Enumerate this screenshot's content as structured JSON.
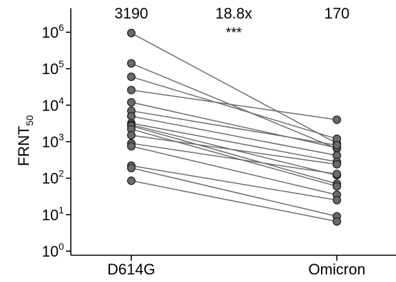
{
  "chart_data": {
    "type": "line",
    "scale": "log10",
    "ylabel": {
      "main": "FRNT",
      "subscript": "50"
    },
    "ylim": [
      1,
      1000000
    ],
    "yticks": [
      {
        "base": "10",
        "exp": "0",
        "value": 1
      },
      {
        "base": "10",
        "exp": "1",
        "value": 10
      },
      {
        "base": "10",
        "exp": "2",
        "value": 100
      },
      {
        "base": "10",
        "exp": "3",
        "value": 1000
      },
      {
        "base": "10",
        "exp": "4",
        "value": 10000
      },
      {
        "base": "10",
        "exp": "5",
        "value": 100000
      },
      {
        "base": "10",
        "exp": "6",
        "value": 1000000
      }
    ],
    "categories": [
      "D614G",
      "Omicron"
    ],
    "annotations": {
      "left": "3190",
      "middle": "18.8x",
      "right": "170",
      "significance": "***"
    },
    "pairs": [
      [
        950000,
        900
      ],
      [
        140000,
        650
      ],
      [
        60000,
        1200
      ],
      [
        26000,
        4000
      ],
      [
        12000,
        680
      ],
      [
        7000,
        800
      ],
      [
        5000,
        420
      ],
      [
        3200,
        280
      ],
      [
        2900,
        120
      ],
      [
        2700,
        70
      ],
      [
        2200,
        60
      ],
      [
        1500,
        240
      ],
      [
        900,
        130
      ],
      [
        750,
        35
      ],
      [
        220,
        25
      ],
      [
        190,
        9
      ],
      [
        85,
        6.5
      ]
    ],
    "colors": {
      "marker_fill": "#6b6b6b",
      "marker_stroke": "#222222",
      "line": "#6b6b6b",
      "axis": "#000000"
    }
  }
}
